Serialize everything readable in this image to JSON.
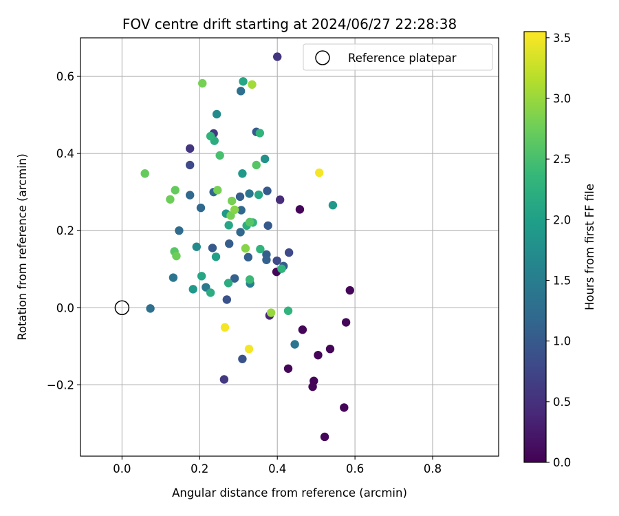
{
  "chart_data": {
    "type": "scatter",
    "title": "FOV centre drift starting at 2024/06/27 22:28:38",
    "xlabel": "Angular distance from reference (arcmin)",
    "ylabel": "Rotation from reference (arcmin)",
    "xlim": [
      -0.107,
      0.97
    ],
    "ylim": [
      -0.385,
      0.7
    ],
    "xticks": [
      0.0,
      0.2,
      0.4,
      0.6,
      0.8
    ],
    "xtick_labels": [
      "0.0",
      "0.2",
      "0.4",
      "0.6",
      "0.8"
    ],
    "yticks": [
      -0.2,
      0.0,
      0.2,
      0.4,
      0.6
    ],
    "ytick_labels": [
      "−0.2",
      "0.0",
      "0.2",
      "0.4",
      "0.6"
    ],
    "grid": true,
    "colormap": "viridis",
    "colorbar": {
      "label": "Hours from first FF file",
      "min": 0.0,
      "max": 3.55,
      "ticks": [
        0.0,
        0.5,
        1.0,
        1.5,
        2.0,
        2.5,
        3.0,
        3.5
      ],
      "tick_labels": [
        "0.0",
        "0.5",
        "1.0",
        "1.5",
        "2.0",
        "2.5",
        "3.0",
        "3.5"
      ]
    },
    "legend": {
      "placement": "top-right",
      "entries": [
        {
          "label": "Reference platepar",
          "marker": "open-circle"
        }
      ]
    },
    "reference_point": {
      "x": 0.0,
      "y": 0.0
    },
    "points": [
      {
        "x": 0.4,
        "y": 0.651,
        "h": 0.55
      },
      {
        "x": 0.458,
        "y": 0.255,
        "h": 0.05
      },
      {
        "x": 0.587,
        "y": 0.045,
        "h": 0.05
      },
      {
        "x": 0.398,
        "y": 0.093,
        "h": 0.05
      },
      {
        "x": 0.465,
        "y": -0.057,
        "h": 0.05
      },
      {
        "x": 0.577,
        "y": -0.038,
        "h": 0.05
      },
      {
        "x": 0.536,
        "y": -0.107,
        "h": 0.05
      },
      {
        "x": 0.505,
        "y": -0.123,
        "h": 0.05
      },
      {
        "x": 0.428,
        "y": -0.158,
        "h": 0.05
      },
      {
        "x": 0.494,
        "y": -0.19,
        "h": 0.05
      },
      {
        "x": 0.491,
        "y": -0.205,
        "h": 0.05
      },
      {
        "x": 0.572,
        "y": -0.259,
        "h": 0.05
      },
      {
        "x": 0.522,
        "y": -0.335,
        "h": 0.05
      },
      {
        "x": 0.38,
        "y": -0.02,
        "h": 0.4
      },
      {
        "x": 0.407,
        "y": 0.28,
        "h": 0.45
      },
      {
        "x": 0.175,
        "y": 0.413,
        "h": 0.55
      },
      {
        "x": 0.263,
        "y": -0.186,
        "h": 0.6
      },
      {
        "x": 0.236,
        "y": 0.452,
        "h": 0.6
      },
      {
        "x": 0.399,
        "y": 0.122,
        "h": 0.8
      },
      {
        "x": 0.43,
        "y": 0.143,
        "h": 0.8
      },
      {
        "x": 0.175,
        "y": 0.37,
        "h": 0.8
      },
      {
        "x": 0.27,
        "y": 0.021,
        "h": 0.9
      },
      {
        "x": 0.31,
        "y": -0.133,
        "h": 0.9
      },
      {
        "x": 0.346,
        "y": 0.456,
        "h": 1.0
      },
      {
        "x": 0.374,
        "y": 0.303,
        "h": 1.0
      },
      {
        "x": 0.376,
        "y": 0.213,
        "h": 1.0
      },
      {
        "x": 0.233,
        "y": 0.155,
        "h": 1.0
      },
      {
        "x": 0.276,
        "y": 0.166,
        "h": 1.05
      },
      {
        "x": 0.304,
        "y": 0.288,
        "h": 1.05
      },
      {
        "x": 0.416,
        "y": 0.108,
        "h": 1.05
      },
      {
        "x": 0.372,
        "y": 0.138,
        "h": 1.05
      },
      {
        "x": 0.372,
        "y": 0.124,
        "h": 1.1
      },
      {
        "x": 0.325,
        "y": 0.131,
        "h": 1.1
      },
      {
        "x": 0.29,
        "y": 0.076,
        "h": 1.1
      },
      {
        "x": 0.306,
        "y": 0.562,
        "h": 1.3
      },
      {
        "x": 0.307,
        "y": 0.253,
        "h": 1.2
      },
      {
        "x": 0.305,
        "y": 0.196,
        "h": 1.2
      },
      {
        "x": 0.236,
        "y": 0.3,
        "h": 1.2
      },
      {
        "x": 0.203,
        "y": 0.259,
        "h": 1.2
      },
      {
        "x": 0.147,
        "y": 0.2,
        "h": 1.25
      },
      {
        "x": 0.175,
        "y": 0.292,
        "h": 1.2
      },
      {
        "x": 0.073,
        "y": -0.002,
        "h": 1.3
      },
      {
        "x": 0.445,
        "y": -0.095,
        "h": 1.4
      },
      {
        "x": 0.132,
        "y": 0.078,
        "h": 1.4
      },
      {
        "x": 0.216,
        "y": 0.053,
        "h": 1.45
      },
      {
        "x": 0.328,
        "y": 0.296,
        "h": 1.4
      },
      {
        "x": 0.33,
        "y": 0.063,
        "h": 1.5
      },
      {
        "x": 0.192,
        "y": 0.158,
        "h": 1.7
      },
      {
        "x": 0.244,
        "y": 0.502,
        "h": 1.7
      },
      {
        "x": 0.368,
        "y": 0.386,
        "h": 1.8
      },
      {
        "x": 0.31,
        "y": 0.348,
        "h": 1.9
      },
      {
        "x": 0.268,
        "y": 0.244,
        "h": 1.9
      },
      {
        "x": 0.543,
        "y": 0.266,
        "h": 1.9
      },
      {
        "x": 0.183,
        "y": 0.048,
        "h": 1.9
      },
      {
        "x": 0.242,
        "y": 0.132,
        "h": 2.0
      },
      {
        "x": 0.205,
        "y": 0.082,
        "h": 2.1
      },
      {
        "x": 0.312,
        "y": 0.587,
        "h": 2.1
      },
      {
        "x": 0.352,
        "y": 0.293,
        "h": 2.1
      },
      {
        "x": 0.275,
        "y": 0.214,
        "h": 2.1
      },
      {
        "x": 0.321,
        "y": 0.213,
        "h": 2.2
      },
      {
        "x": 0.274,
        "y": 0.064,
        "h": 2.2
      },
      {
        "x": 0.228,
        "y": 0.039,
        "h": 2.2
      },
      {
        "x": 0.238,
        "y": 0.433,
        "h": 2.2
      },
      {
        "x": 0.228,
        "y": 0.445,
        "h": 2.3
      },
      {
        "x": 0.355,
        "y": 0.453,
        "h": 2.3
      },
      {
        "x": 0.356,
        "y": 0.152,
        "h": 2.3
      },
      {
        "x": 0.411,
        "y": 0.101,
        "h": 2.3
      },
      {
        "x": 0.428,
        "y": -0.008,
        "h": 2.3
      },
      {
        "x": 0.337,
        "y": 0.221,
        "h": 2.3
      },
      {
        "x": 0.329,
        "y": 0.073,
        "h": 2.4
      },
      {
        "x": 0.252,
        "y": 0.395,
        "h": 2.5
      },
      {
        "x": 0.346,
        "y": 0.37,
        "h": 2.6
      },
      {
        "x": 0.135,
        "y": 0.146,
        "h": 2.6
      },
      {
        "x": 0.329,
        "y": 0.222,
        "h": 2.6
      },
      {
        "x": 0.059,
        "y": 0.348,
        "h": 2.7
      },
      {
        "x": 0.137,
        "y": 0.305,
        "h": 2.7
      },
      {
        "x": 0.124,
        "y": 0.281,
        "h": 2.75
      },
      {
        "x": 0.14,
        "y": 0.134,
        "h": 2.75
      },
      {
        "x": 0.283,
        "y": 0.277,
        "h": 2.8
      },
      {
        "x": 0.207,
        "y": 0.582,
        "h": 2.8
      },
      {
        "x": 0.246,
        "y": 0.305,
        "h": 2.8
      },
      {
        "x": 0.28,
        "y": 0.239,
        "h": 2.8
      },
      {
        "x": 0.29,
        "y": 0.254,
        "h": 2.9
      },
      {
        "x": 0.318,
        "y": 0.154,
        "h": 2.9
      },
      {
        "x": 0.384,
        "y": -0.013,
        "h": 3.0
      },
      {
        "x": 0.335,
        "y": 0.579,
        "h": 3.05
      },
      {
        "x": 0.265,
        "y": -0.051,
        "h": 3.5
      },
      {
        "x": 0.327,
        "y": -0.107,
        "h": 3.5
      },
      {
        "x": 0.508,
        "y": 0.35,
        "h": 3.5
      }
    ]
  }
}
